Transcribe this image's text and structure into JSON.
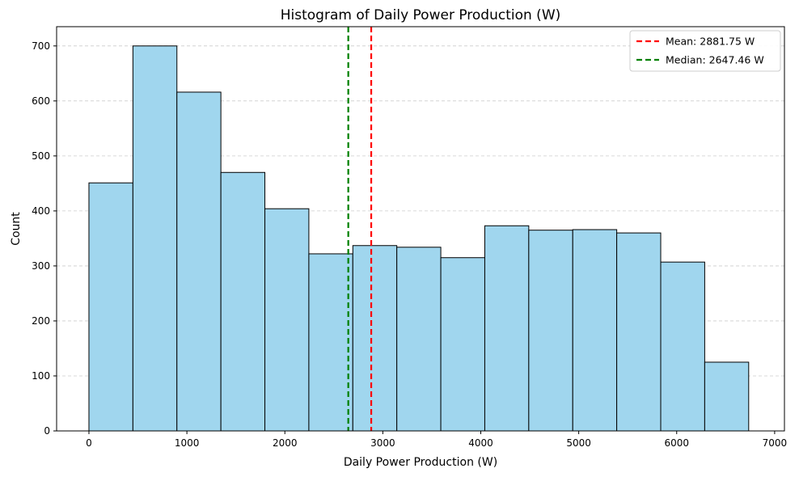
{
  "chart_data": {
    "type": "bar",
    "title": "Histogram of Daily Power Production (W)",
    "xlabel": "Daily Power Production (W)",
    "ylabel": "Count",
    "xlim": [
      -330,
      7100
    ],
    "ylim": [
      0,
      735
    ],
    "xticks": [
      0,
      1000,
      2000,
      3000,
      4000,
      5000,
      6000,
      7000
    ],
    "yticks": [
      0,
      100,
      200,
      300,
      400,
      500,
      600,
      700
    ],
    "grid": "y-dashed",
    "bin_edges": [
      0,
      449,
      898,
      1347,
      1796,
      2245,
      2694,
      3143,
      3592,
      4041,
      4490,
      4939,
      5388,
      5837,
      6286,
      6735
    ],
    "values": [
      451,
      700,
      616,
      470,
      404,
      322,
      337,
      334,
      315,
      373,
      365,
      366,
      360,
      307,
      125
    ],
    "bar_color": "#a0d6ee",
    "edge_color": "#000000",
    "vlines": [
      {
        "label": "Mean: 2881.75 W",
        "x": 2881.75,
        "color": "#ff0000"
      },
      {
        "label": "Median: 2647.46 W",
        "x": 2647.46,
        "color": "#008000"
      }
    ],
    "legend_position": "top-right"
  }
}
